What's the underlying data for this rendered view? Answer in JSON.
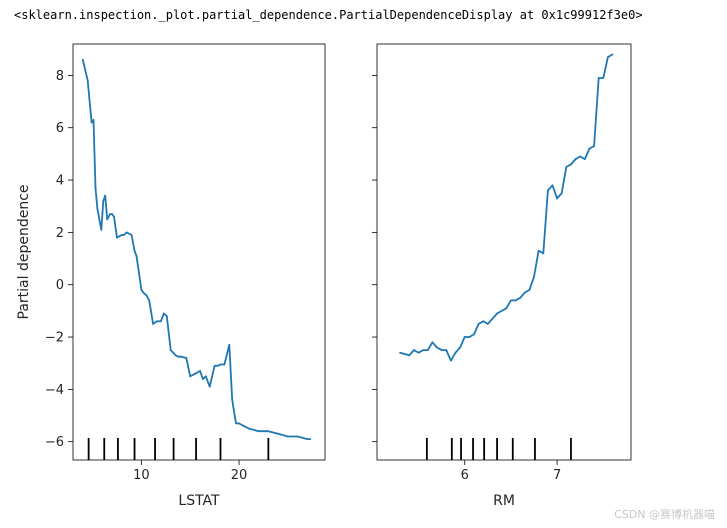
{
  "header": {
    "repr_text": "<sklearn.inspection._plot.partial_dependence.PartialDependenceDisplay at 0x1c99912f3e0>"
  },
  "watermark": {
    "text": "CSDN @赛博机器喵"
  },
  "colors": {
    "line": "#1f77b4",
    "axis": "#000000"
  },
  "chart_data": [
    {
      "type": "line",
      "title": "",
      "xlabel": "LSTAT",
      "ylabel": "Partial dependence",
      "xlim": [
        3.0,
        28.8
      ],
      "ylim": [
        -6.7,
        9.2
      ],
      "xticks": [
        10,
        20
      ],
      "yticks": [
        -6,
        -4,
        -2,
        0,
        2,
        4,
        6,
        8
      ],
      "deciles": [
        4.6,
        6.2,
        7.6,
        9.3,
        11.4,
        13.3,
        15.6,
        18.1,
        23.0
      ],
      "x": [
        4.0,
        4.5,
        4.9,
        5.1,
        5.3,
        5.5,
        5.9,
        6.1,
        6.3,
        6.5,
        6.8,
        7.0,
        7.2,
        7.5,
        8.0,
        8.2,
        8.5,
        9.0,
        9.3,
        9.5,
        10.0,
        10.2,
        10.5,
        10.8,
        11.2,
        11.6,
        12.0,
        12.3,
        12.6,
        13.0,
        13.5,
        13.8,
        14.1,
        14.6,
        15.0,
        15.5,
        16.0,
        16.3,
        16.6,
        17.0,
        17.5,
        17.8,
        18.1,
        18.5,
        19.0,
        19.3,
        19.6,
        19.7,
        20.0,
        20.5,
        21.0,
        22.0,
        23.0,
        24.0,
        25.0,
        26.0,
        27.0,
        27.3
      ],
      "y": [
        8.6,
        7.8,
        6.2,
        6.3,
        3.7,
        2.9,
        2.1,
        3.2,
        3.4,
        2.5,
        2.7,
        2.7,
        2.6,
        1.8,
        1.9,
        1.9,
        2.0,
        1.9,
        1.3,
        1.1,
        -0.2,
        -0.3,
        -0.4,
        -0.6,
        -1.5,
        -1.4,
        -1.4,
        -1.1,
        -1.2,
        -2.5,
        -2.7,
        -2.75,
        -2.75,
        -2.8,
        -3.5,
        -3.4,
        -3.3,
        -3.6,
        -3.5,
        -3.9,
        -3.1,
        -3.1,
        -3.05,
        -3.05,
        -2.3,
        -4.4,
        -5.1,
        -5.3,
        -5.3,
        -5.4,
        -5.5,
        -5.6,
        -5.6,
        -5.7,
        -5.8,
        -5.8,
        -5.9,
        -5.9
      ]
    },
    {
      "type": "line",
      "title": "",
      "xlabel": "RM",
      "ylabel": "",
      "xlim": [
        5.05,
        7.8
      ],
      "ylim": [
        -6.7,
        9.2
      ],
      "xticks": [
        6,
        7
      ],
      "yticks": [
        -6,
        -4,
        -2,
        0,
        2,
        4,
        6,
        8
      ],
      "deciles": [
        5.59,
        5.86,
        5.96,
        6.09,
        6.21,
        6.35,
        6.52,
        6.76,
        7.15
      ],
      "x": [
        5.3,
        5.4,
        5.45,
        5.5,
        5.55,
        5.6,
        5.65,
        5.7,
        5.75,
        5.8,
        5.85,
        5.9,
        5.95,
        6.0,
        6.05,
        6.1,
        6.15,
        6.2,
        6.25,
        6.3,
        6.35,
        6.4,
        6.45,
        6.5,
        6.55,
        6.6,
        6.65,
        6.7,
        6.75,
        6.8,
        6.85,
        6.9,
        6.95,
        7.0,
        7.05,
        7.1,
        7.15,
        7.2,
        7.25,
        7.3,
        7.35,
        7.4,
        7.45,
        7.5,
        7.55,
        7.6
      ],
      "y": [
        -2.6,
        -2.7,
        -2.5,
        -2.6,
        -2.5,
        -2.5,
        -2.2,
        -2.4,
        -2.5,
        -2.5,
        -2.9,
        -2.6,
        -2.4,
        -2.0,
        -2.0,
        -1.9,
        -1.5,
        -1.4,
        -1.5,
        -1.3,
        -1.1,
        -1.0,
        -0.9,
        -0.6,
        -0.6,
        -0.5,
        -0.3,
        -0.2,
        0.3,
        1.3,
        1.2,
        3.6,
        3.8,
        3.3,
        3.5,
        4.5,
        4.6,
        4.8,
        4.9,
        4.8,
        5.2,
        5.3,
        7.9,
        7.9,
        8.7,
        8.8
      ]
    }
  ]
}
